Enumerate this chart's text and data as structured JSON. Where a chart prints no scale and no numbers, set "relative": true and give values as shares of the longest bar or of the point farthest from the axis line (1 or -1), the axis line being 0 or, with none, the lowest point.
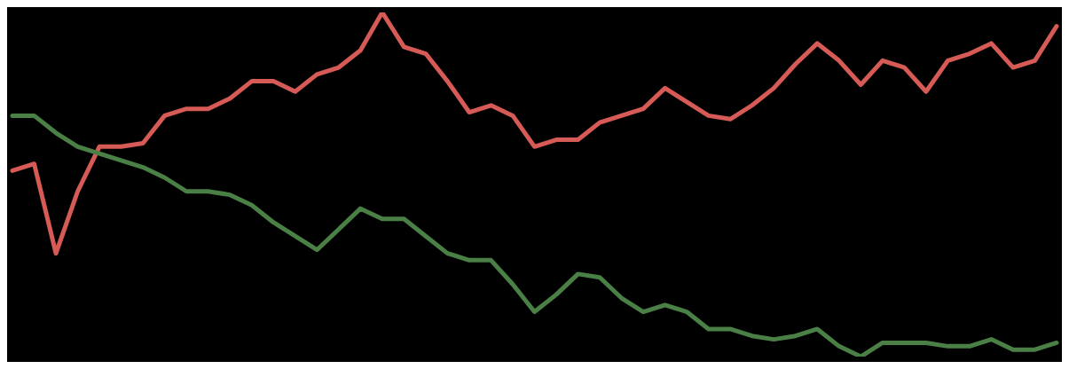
{
  "chart_data": {
    "type": "line",
    "relative": true,
    "marker": "none",
    "line_style": "solid",
    "categories": [
      null,
      null,
      null,
      null,
      null,
      null,
      null,
      null,
      null,
      null,
      null,
      null,
      null,
      null,
      null,
      null,
      null,
      null,
      null,
      null,
      null,
      null,
      null,
      null,
      null,
      null,
      null,
      null,
      null,
      null,
      null,
      null,
      null,
      null,
      null,
      null,
      null,
      null,
      null,
      null,
      null,
      null,
      null,
      null,
      null,
      null,
      null,
      null,
      null
    ],
    "series": [
      {
        "color": "#d65a55",
        "values": [
          0.54,
          0.56,
          0.3,
          0.48,
          0.61,
          0.61,
          0.62,
          0.7,
          0.72,
          0.72,
          0.75,
          0.8,
          0.8,
          0.77,
          0.82,
          0.84,
          0.89,
          1,
          0.9,
          0.88,
          0.8,
          0.71,
          0.73,
          0.7,
          0.61,
          0.63,
          0.63,
          0.68,
          0.7,
          0.72,
          0.78,
          0.74,
          0.7,
          0.69,
          0.73,
          0.78,
          0.85,
          0.91,
          0.86,
          0.79,
          0.86,
          0.84,
          0.77,
          0.86,
          0.88,
          0.91,
          0.84,
          0.86,
          0.96
        ]
      },
      {
        "color": "#4a7f45",
        "values": [
          0.7,
          0.7,
          0.65,
          0.61,
          0.59,
          0.57,
          0.55,
          0.52,
          0.48,
          0.48,
          0.47,
          0.44,
          0.39,
          0.35,
          0.31,
          0.37,
          0.43,
          0.4,
          0.4,
          0.35,
          0.3,
          0.28,
          0.28,
          0.21,
          0.13,
          0.18,
          0.24,
          0.23,
          0.17,
          0.13,
          0.15,
          0.13,
          0.08,
          0.08,
          0.06,
          0.05,
          0.06,
          0.08,
          0.03,
          0,
          0.04,
          0.04,
          0.04,
          0.03,
          0.03,
          0.05,
          0.02,
          0.02,
          0.04
        ]
      }
    ]
  }
}
